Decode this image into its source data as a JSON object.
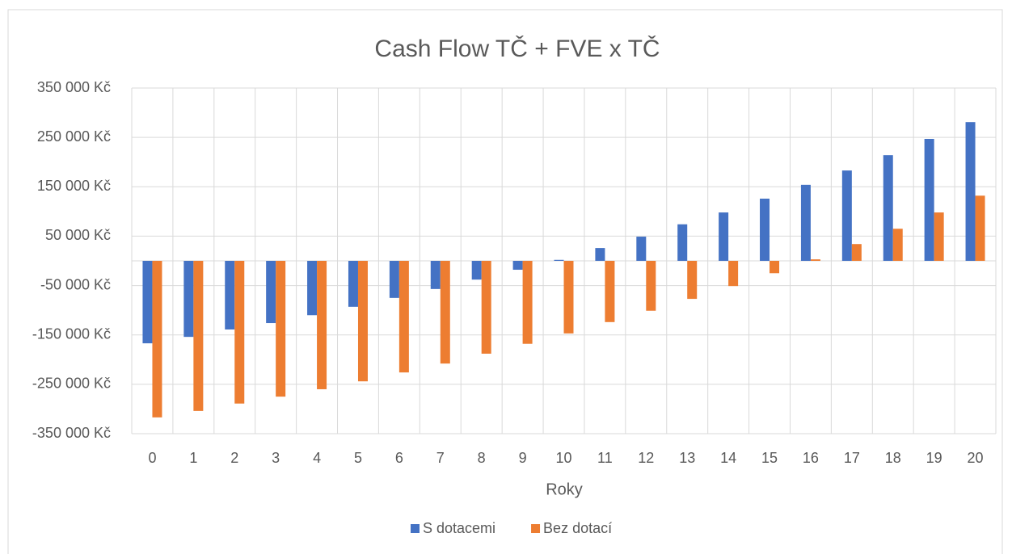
{
  "chart_data": {
    "type": "bar",
    "title": "Cash Flow TČ + FVE x TČ",
    "x_label": "Roky",
    "categories": [
      "0",
      "1",
      "2",
      "3",
      "4",
      "5",
      "6",
      "7",
      "8",
      "9",
      "10",
      "11",
      "12",
      "13",
      "14",
      "15",
      "16",
      "17",
      "18",
      "19",
      "20"
    ],
    "series": [
      {
        "name": "S dotacemi",
        "color": "#4472c4",
        "values": [
          -167000,
          -154000,
          -139000,
          -126000,
          -110000,
          -93000,
          -75000,
          -57000,
          -38000,
          -18000,
          2000,
          26000,
          49000,
          74000,
          98000,
          126000,
          154000,
          183000,
          214000,
          247000,
          281000
        ]
      },
      {
        "name": "Bez dotací",
        "color": "#ed7d31",
        "values": [
          -317000,
          -304000,
          -289000,
          -275000,
          -260000,
          -244000,
          -226000,
          -208000,
          -188000,
          -168000,
          -147000,
          -124000,
          -101000,
          -77000,
          -51000,
          -25000,
          3000,
          34000,
          65000,
          98000,
          132000
        ]
      }
    ],
    "ylim": [
      -350000,
      350000
    ],
    "yticks": [
      {
        "value": -350000,
        "label": "-350 000 Kč"
      },
      {
        "value": -250000,
        "label": "-250 000 Kč"
      },
      {
        "value": -150000,
        "label": "-150 000 Kč"
      },
      {
        "value": -50000,
        "label": "-50 000 Kč"
      },
      {
        "value": 50000,
        "label": "50 000 Kč"
      },
      {
        "value": 150000,
        "label": "150 000 Kč"
      },
      {
        "value": 250000,
        "label": "250 000 Kč"
      },
      {
        "value": 350000,
        "label": "350 000 Kč"
      }
    ],
    "grid": true,
    "legend": "bottom"
  }
}
